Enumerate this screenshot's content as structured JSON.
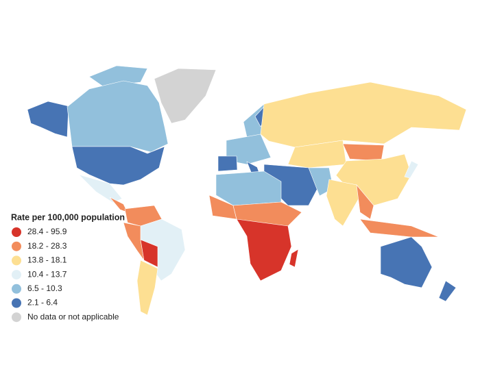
{
  "legend": {
    "title": "Rate per 100,000 population",
    "items": [
      {
        "label": "28.4 - 95.9",
        "color": "#d7342a"
      },
      {
        "label": "18.2 - 28.3",
        "color": "#f28c5c"
      },
      {
        "label": "13.8 - 18.1",
        "color": "#fddf92"
      },
      {
        "label": "10.4 - 13.7",
        "color": "#e2f0f6"
      },
      {
        "label": "6.5 - 10.3",
        "color": "#92c0dc"
      },
      {
        "label": "2.1 - 6.4",
        "color": "#4774b4"
      },
      {
        "label": "No data or not applicable",
        "color": "#d3d3d3"
      }
    ]
  }
}
